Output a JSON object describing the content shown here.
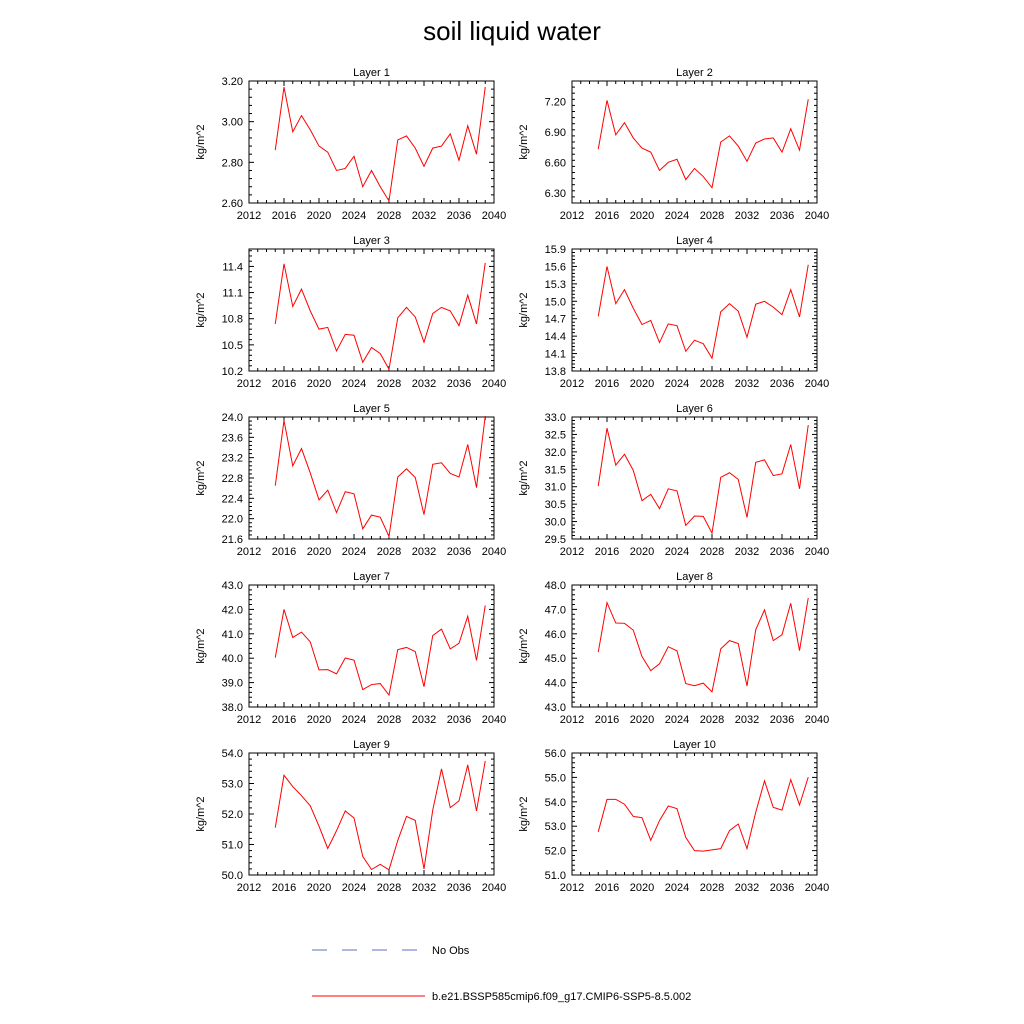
{
  "figure": {
    "title": "soil liquid water",
    "legend": [
      {
        "label": "No Obs",
        "color": "#5b6fbf",
        "style": "dashed"
      },
      {
        "label": "b.e21.BSSP585cmip6.f09_g17.CMIP6-SSP5-8.5.002",
        "color": "#ff0000",
        "style": "solid"
      }
    ]
  },
  "chart_data": [
    {
      "type": "line",
      "title": "Layer 1",
      "ylabel": "kg/m^2",
      "xlim": [
        2012,
        2040
      ],
      "xticks": [
        2012,
        2016,
        2020,
        2024,
        2028,
        2032,
        2036,
        2040
      ],
      "ylim": [
        2.6,
        3.2
      ],
      "yticks": [
        "2.60",
        "2.80",
        "3.00",
        "3.20"
      ],
      "x": [
        2015,
        2016,
        2017,
        2018,
        2019,
        2020,
        2021,
        2022,
        2023,
        2024,
        2025,
        2026,
        2027,
        2028,
        2029,
        2030,
        2031,
        2032,
        2033,
        2034,
        2035,
        2036,
        2037,
        2038,
        2039
      ],
      "series": [
        {
          "color": "#ff0000",
          "values": [
            2.86,
            3.17,
            2.95,
            3.03,
            2.96,
            2.88,
            2.85,
            2.76,
            2.77,
            2.83,
            2.68,
            2.76,
            2.68,
            2.61,
            2.91,
            2.93,
            2.87,
            2.78,
            2.87,
            2.88,
            2.94,
            2.81,
            2.98,
            2.84,
            3.17
          ]
        }
      ]
    },
    {
      "type": "line",
      "title": "Layer 2",
      "ylabel": "kg/m^2",
      "xlim": [
        2012,
        2040
      ],
      "xticks": [
        2012,
        2016,
        2020,
        2024,
        2028,
        2032,
        2036,
        2040
      ],
      "ylim": [
        6.2,
        7.4
      ],
      "yticks": [
        "6.30",
        "6.60",
        "6.90",
        "7.20"
      ],
      "x": [
        2015,
        2016,
        2017,
        2018,
        2019,
        2020,
        2021,
        2022,
        2023,
        2024,
        2025,
        2026,
        2027,
        2028,
        2029,
        2030,
        2031,
        2032,
        2033,
        2034,
        2035,
        2036,
        2037,
        2038,
        2039
      ],
      "series": [
        {
          "color": "#ff0000",
          "values": [
            6.73,
            7.21,
            6.87,
            6.99,
            6.84,
            6.74,
            6.7,
            6.52,
            6.6,
            6.63,
            6.43,
            6.54,
            6.46,
            6.35,
            6.8,
            6.86,
            6.76,
            6.61,
            6.79,
            6.83,
            6.84,
            6.7,
            6.93,
            6.72,
            7.22
          ]
        }
      ]
    },
    {
      "type": "line",
      "title": "Layer 3",
      "ylabel": "kg/m^2",
      "xlim": [
        2012,
        2040
      ],
      "xticks": [
        2012,
        2016,
        2020,
        2024,
        2028,
        2032,
        2036,
        2040
      ],
      "ylim": [
        10.2,
        11.6
      ],
      "yticks": [
        "10.2",
        "10.5",
        "10.8",
        "11.1",
        "11.4"
      ],
      "x": [
        2015,
        2016,
        2017,
        2018,
        2019,
        2020,
        2021,
        2022,
        2023,
        2024,
        2025,
        2026,
        2027,
        2028,
        2029,
        2030,
        2031,
        2032,
        2033,
        2034,
        2035,
        2036,
        2037,
        2038,
        2039
      ],
      "series": [
        {
          "color": "#ff0000",
          "values": [
            10.74,
            11.43,
            10.94,
            11.14,
            10.89,
            10.68,
            10.7,
            10.43,
            10.62,
            10.61,
            10.3,
            10.47,
            10.4,
            10.22,
            10.81,
            10.93,
            10.82,
            10.53,
            10.86,
            10.93,
            10.89,
            10.72,
            11.07,
            10.74,
            11.44
          ]
        }
      ]
    },
    {
      "type": "line",
      "title": "Layer 4",
      "ylabel": "kg/m^2",
      "xlim": [
        2012,
        2040
      ],
      "xticks": [
        2012,
        2016,
        2020,
        2024,
        2028,
        2032,
        2036,
        2040
      ],
      "ylim": [
        13.8,
        15.9
      ],
      "yticks": [
        "13.8",
        "14.1",
        "14.4",
        "14.7",
        "15.0",
        "15.3",
        "15.6",
        "15.9"
      ],
      "x": [
        2015,
        2016,
        2017,
        2018,
        2019,
        2020,
        2021,
        2022,
        2023,
        2024,
        2025,
        2026,
        2027,
        2028,
        2029,
        2030,
        2031,
        2032,
        2033,
        2034,
        2035,
        2036,
        2037,
        2038,
        2039
      ],
      "series": [
        {
          "color": "#ff0000",
          "values": [
            14.74,
            15.6,
            14.96,
            15.2,
            14.88,
            14.6,
            14.67,
            14.29,
            14.61,
            14.58,
            14.14,
            14.33,
            14.27,
            14.02,
            14.82,
            14.96,
            14.83,
            14.38,
            14.95,
            15.0,
            14.9,
            14.77,
            15.2,
            14.73,
            15.63
          ]
        }
      ]
    },
    {
      "type": "line",
      "title": "Layer 5",
      "ylabel": "kg/m^2",
      "xlim": [
        2012,
        2040
      ],
      "xticks": [
        2012,
        2016,
        2020,
        2024,
        2028,
        2032,
        2036,
        2040
      ],
      "ylim": [
        21.6,
        24.0
      ],
      "yticks": [
        "21.6",
        "22.0",
        "22.4",
        "22.8",
        "23.2",
        "23.6",
        "24.0"
      ],
      "x": [
        2015,
        2016,
        2017,
        2018,
        2019,
        2020,
        2021,
        2022,
        2023,
        2024,
        2025,
        2026,
        2027,
        2028,
        2029,
        2030,
        2031,
        2032,
        2033,
        2034,
        2035,
        2036,
        2037,
        2038,
        2039
      ],
      "series": [
        {
          "color": "#ff0000",
          "values": [
            22.65,
            23.93,
            23.04,
            23.38,
            22.9,
            22.37,
            22.56,
            22.12,
            22.53,
            22.49,
            21.8,
            22.07,
            22.03,
            21.65,
            22.82,
            22.98,
            22.81,
            22.08,
            23.07,
            23.1,
            22.89,
            22.82,
            23.46,
            22.61,
            24.02
          ]
        }
      ]
    },
    {
      "type": "line",
      "title": "Layer 6",
      "ylabel": "kg/m^2",
      "xlim": [
        2012,
        2040
      ],
      "xticks": [
        2012,
        2016,
        2020,
        2024,
        2028,
        2032,
        2036,
        2040
      ],
      "ylim": [
        29.5,
        33.0
      ],
      "yticks": [
        "29.5",
        "30.0",
        "30.5",
        "31.0",
        "31.5",
        "32.0",
        "32.5",
        "33.0"
      ],
      "x": [
        2015,
        2016,
        2017,
        2018,
        2019,
        2020,
        2021,
        2022,
        2023,
        2024,
        2025,
        2026,
        2027,
        2028,
        2029,
        2030,
        2031,
        2032,
        2033,
        2034,
        2035,
        2036,
        2037,
        2038,
        2039
      ],
      "series": [
        {
          "color": "#ff0000",
          "values": [
            31.02,
            32.68,
            31.62,
            31.93,
            31.47,
            30.6,
            30.78,
            30.37,
            30.94,
            30.88,
            29.89,
            30.16,
            30.15,
            29.67,
            31.27,
            31.4,
            31.21,
            30.12,
            31.7,
            31.77,
            31.32,
            31.37,
            32.21,
            30.94,
            32.77
          ]
        }
      ]
    },
    {
      "type": "line",
      "title": "Layer 7",
      "ylabel": "kg/m^2",
      "xlim": [
        2012,
        2040
      ],
      "xticks": [
        2012,
        2016,
        2020,
        2024,
        2028,
        2032,
        2036,
        2040
      ],
      "ylim": [
        38.0,
        43.0
      ],
      "yticks": [
        "38.0",
        "39.0",
        "40.0",
        "41.0",
        "42.0",
        "43.0"
      ],
      "x": [
        2015,
        2016,
        2017,
        2018,
        2019,
        2020,
        2021,
        2022,
        2023,
        2024,
        2025,
        2026,
        2027,
        2028,
        2029,
        2030,
        2031,
        2032,
        2033,
        2034,
        2035,
        2036,
        2037,
        2038,
        2039
      ],
      "series": [
        {
          "color": "#ff0000",
          "values": [
            40.02,
            42.0,
            40.85,
            41.07,
            40.67,
            39.52,
            39.53,
            39.36,
            40.01,
            39.92,
            38.71,
            38.92,
            38.96,
            38.49,
            40.35,
            40.44,
            40.27,
            38.83,
            40.93,
            41.19,
            40.38,
            40.61,
            41.72,
            39.91,
            42.16
          ]
        }
      ]
    },
    {
      "type": "line",
      "title": "Layer 8",
      "ylabel": "kg/m^2",
      "xlim": [
        2012,
        2040
      ],
      "xticks": [
        2012,
        2016,
        2020,
        2024,
        2028,
        2032,
        2036,
        2040
      ],
      "ylim": [
        43.0,
        48.0
      ],
      "yticks": [
        "43.0",
        "44.0",
        "45.0",
        "46.0",
        "47.0",
        "48.0"
      ],
      "x": [
        2015,
        2016,
        2017,
        2018,
        2019,
        2020,
        2021,
        2022,
        2023,
        2024,
        2025,
        2026,
        2027,
        2028,
        2029,
        2030,
        2031,
        2032,
        2033,
        2034,
        2035,
        2036,
        2037,
        2038,
        2039
      ],
      "series": [
        {
          "color": "#ff0000",
          "values": [
            45.25,
            47.28,
            46.44,
            46.43,
            46.15,
            45.07,
            44.49,
            44.77,
            45.47,
            45.3,
            43.96,
            43.87,
            43.98,
            43.62,
            45.38,
            45.72,
            45.6,
            43.86,
            46.17,
            46.98,
            45.72,
            45.96,
            47.25,
            45.31,
            47.47
          ]
        }
      ]
    },
    {
      "type": "line",
      "title": "Layer 9",
      "ylabel": "kg/m^2",
      "xlim": [
        2012,
        2040
      ],
      "xticks": [
        2012,
        2016,
        2020,
        2024,
        2028,
        2032,
        2036,
        2040
      ],
      "ylim": [
        50.0,
        54.0
      ],
      "yticks": [
        "50.0",
        "51.0",
        "52.0",
        "53.0",
        "54.0"
      ],
      "x": [
        2015,
        2016,
        2017,
        2018,
        2019,
        2020,
        2021,
        2022,
        2023,
        2024,
        2025,
        2026,
        2027,
        2028,
        2029,
        2030,
        2031,
        2032,
        2033,
        2034,
        2035,
        2036,
        2037,
        2038,
        2039
      ],
      "series": [
        {
          "color": "#ff0000",
          "values": [
            51.55,
            53.27,
            52.9,
            52.6,
            52.27,
            51.6,
            50.87,
            51.45,
            52.1,
            51.87,
            50.61,
            50.18,
            50.35,
            50.17,
            51.13,
            51.92,
            51.79,
            50.2,
            52.13,
            53.48,
            52.21,
            52.43,
            53.61,
            52.1,
            53.74
          ]
        }
      ]
    },
    {
      "type": "line",
      "title": "Layer 10",
      "ylabel": "kg/m^2",
      "xlim": [
        2012,
        2040
      ],
      "xticks": [
        2012,
        2016,
        2020,
        2024,
        2028,
        2032,
        2036,
        2040
      ],
      "ylim": [
        51.0,
        56.0
      ],
      "yticks": [
        "51.0",
        "52.0",
        "53.0",
        "54.0",
        "55.0",
        "56.0"
      ],
      "x": [
        2015,
        2016,
        2017,
        2018,
        2019,
        2020,
        2021,
        2022,
        2023,
        2024,
        2025,
        2026,
        2027,
        2028,
        2029,
        2030,
        2031,
        2032,
        2033,
        2034,
        2035,
        2036,
        2037,
        2038,
        2039
      ],
      "series": [
        {
          "color": "#ff0000",
          "values": [
            52.77,
            54.1,
            54.1,
            53.9,
            53.4,
            53.35,
            52.42,
            53.23,
            53.83,
            53.72,
            52.54,
            52.0,
            51.98,
            52.03,
            52.08,
            52.82,
            53.09,
            52.08,
            53.57,
            54.86,
            53.77,
            53.66,
            54.91,
            53.87,
            55.01
          ]
        }
      ]
    }
  ]
}
